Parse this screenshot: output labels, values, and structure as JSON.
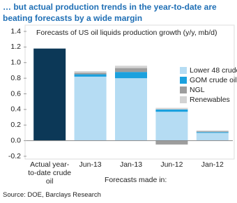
{
  "title": "… but actual production trends in the year-to-date are beating forecasts by a wide margin",
  "source": "Source: DOE, Barclays Research",
  "chart_data": {
    "type": "stacked_bar",
    "title": "Forecasts of US oil liquids production growth (y/y, mb/d)",
    "x_label": "Forecasts made in:",
    "categories": [
      "Actual year-to-date crude oil",
      "Jun-13",
      "Jan-13",
      "Jun-12",
      "Jan-12"
    ],
    "series": [
      {
        "color": "#0c3857",
        "values": [
          1.18,
          null,
          null,
          null,
          null
        ]
      },
      {
        "name": "Lower 48 crude oil",
        "color": "#b5dcf3",
        "values": [
          null,
          0.82,
          0.8,
          0.37,
          0.1
        ]
      },
      {
        "name": "GOM crude oil",
        "color": "#1ba1de",
        "values": [
          null,
          0.03,
          0.08,
          0.03,
          0.01
        ]
      },
      {
        "name": "NGL",
        "color": "#9d9d9d",
        "values": [
          null,
          0.02,
          0.05,
          -0.05,
          0.01
        ]
      },
      {
        "name": "Renewables",
        "color": "#d3d3d3",
        "values": [
          null,
          0.02,
          0.03,
          0.02,
          0.01
        ]
      }
    ],
    "ylim": [
      -0.2,
      1.4
    ],
    "yticks": [
      -0.2,
      {
        "value": 0,
        "label": "0.0"
      },
      0.2,
      0.4,
      0.6,
      0.8,
      {
        "value": 1,
        "label": "1.0"
      },
      1.2,
      1.4
    ],
    "legend": "right"
  }
}
